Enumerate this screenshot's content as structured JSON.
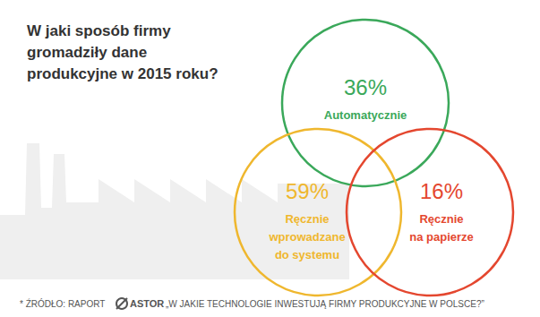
{
  "chart_data": {
    "type": "venn",
    "title": "W jaki sposób firmy\ngromadziły dane\nprodukcyjne w 2015 roku?",
    "categories": [
      "Automatycznie",
      "Ręcznie\nwprowadzane\ndo systemu",
      "Ręcznie\nna papierze"
    ],
    "values": [
      36,
      59,
      16
    ],
    "value_labels": [
      "36%",
      "59%",
      "16%"
    ],
    "colors": [
      "#3aa85a",
      "#efb72e",
      "#e4472f"
    ],
    "data_labels": true,
    "annotations": [
      "* ŹRÓDŁO: RAPORT",
      "ASTOR",
      "„W JAKIE TECHNOLOGIE INWESTUJĄ FIRMY PRODUKCYJNE W POLSCE?”"
    ]
  }
}
